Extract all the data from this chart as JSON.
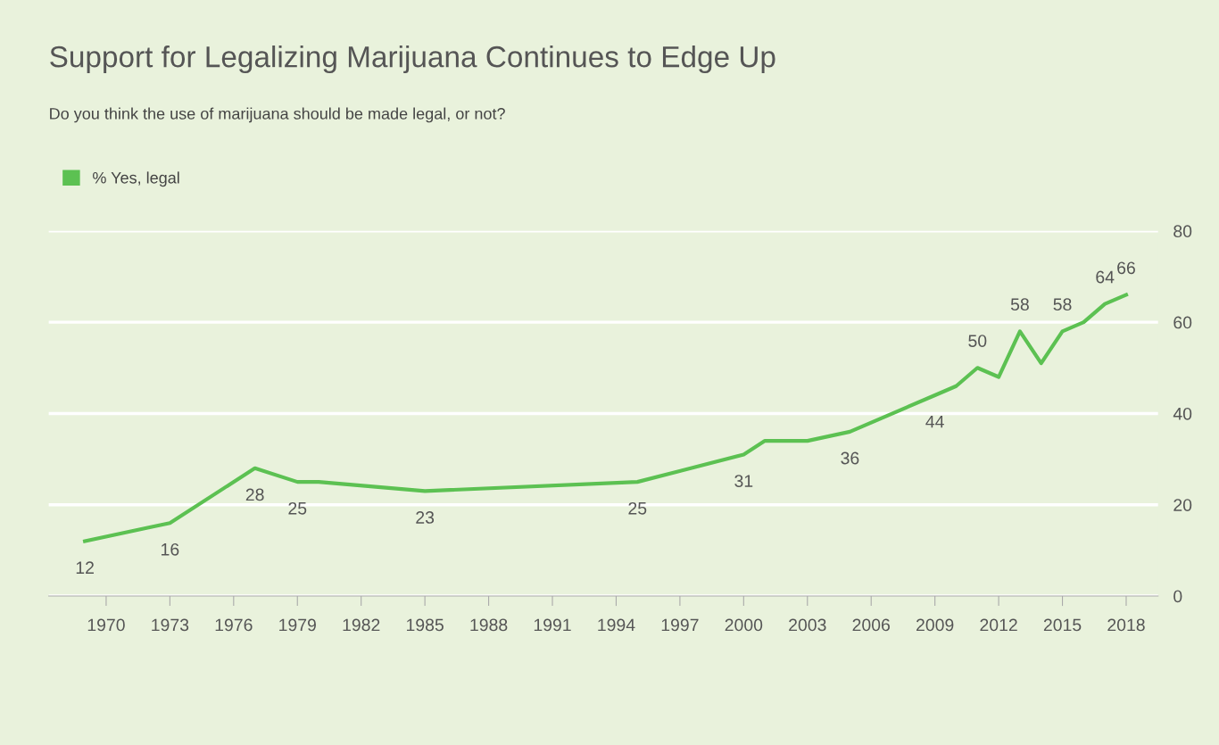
{
  "chart_data": {
    "type": "line",
    "title": "Support for Legalizing Marijuana Continues to Edge Up",
    "subtitle": "Do you think the use of marijuana should be made legal, or not?",
    "x": [
      1969,
      1972,
      1973,
      1977,
      1979,
      1980,
      1985,
      1995,
      2000,
      2001,
      2003,
      2005,
      2009,
      2010,
      2011,
      2012,
      2013,
      2014,
      2015,
      2016,
      2017,
      2018
    ],
    "series": [
      {
        "name": "% Yes, legal",
        "color": "#5cc152",
        "values": [
          12,
          15,
          16,
          28,
          25,
          25,
          23,
          25,
          31,
          34,
          34,
          36,
          44,
          46,
          50,
          48,
          58,
          51,
          58,
          60,
          64,
          66
        ],
        "value_labels": [
          "12",
          null,
          "16",
          "28",
          "25",
          null,
          "23",
          "25",
          "31",
          null,
          null,
          "36",
          "44",
          null,
          "50",
          null,
          "58",
          null,
          "58",
          null,
          "64",
          "66"
        ]
      }
    ],
    "xlim": [
      1967.3,
      2019.5
    ],
    "xticks": [
      1970,
      1973,
      1976,
      1979,
      1982,
      1985,
      1988,
      1991,
      1994,
      1997,
      2000,
      2003,
      2006,
      2009,
      2012,
      2015,
      2018
    ],
    "ylim": [
      0,
      80
    ],
    "yticks": [
      0,
      20,
      40,
      60,
      80
    ],
    "grid": "y",
    "legend": "top left",
    "marker": "none",
    "line_style": "solid"
  }
}
